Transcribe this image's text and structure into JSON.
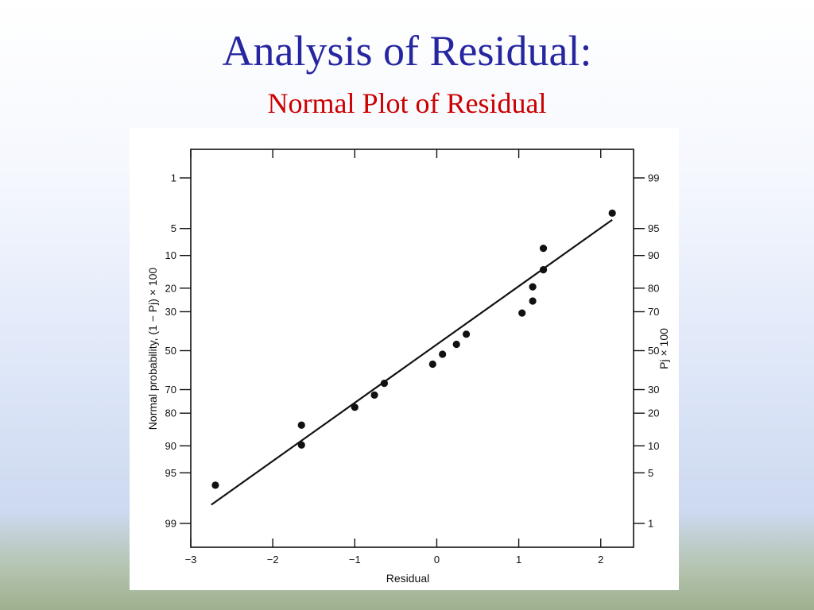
{
  "slide": {
    "title": "Analysis of Residual:",
    "subtitle": "Normal Plot of Residual"
  },
  "colors": {
    "title": "#2626a0",
    "subtitle": "#cc0000",
    "ink": "#111111"
  },
  "chart_data": {
    "type": "scatter",
    "title": "",
    "xlabel": "Residual",
    "ylabel_left": "Normal probability, (1 − Pj) × 100",
    "ylabel_right": "Pj × 100",
    "xlim": [
      -3,
      2.4
    ],
    "x_ticks": [
      -3,
      -2,
      -1,
      0,
      1,
      2
    ],
    "x_tick_labels": [
      "−3",
      "−2",
      "−1",
      "0",
      "1",
      "2"
    ],
    "y_scale": "normal-probability",
    "left_ticks": [
      {
        "label": "1",
        "right": 99
      },
      {
        "label": "5",
        "right": 95
      },
      {
        "label": "10",
        "right": 90
      },
      {
        "label": "20",
        "right": 80
      },
      {
        "label": "30",
        "right": 70
      },
      {
        "label": "50",
        "right": 50
      },
      {
        "label": "70",
        "right": 30
      },
      {
        "label": "80",
        "right": 20
      },
      {
        "label": "90",
        "right": 10
      },
      {
        "label": "95",
        "right": 5
      },
      {
        "label": "99",
        "right": 1
      }
    ],
    "right_tick_labels": [
      "99",
      "95",
      "90",
      "80",
      "70",
      "50",
      "30",
      "20",
      "10",
      "5",
      "1"
    ],
    "points": [
      {
        "x": -2.7,
        "p": 96.5
      },
      {
        "x": -1.65,
        "p": 89.8
      },
      {
        "x": -1.65,
        "p": 84.2
      },
      {
        "x": -1.0,
        "p": 77.7
      },
      {
        "x": -0.76,
        "p": 72.5
      },
      {
        "x": -0.64,
        "p": 67.0
      },
      {
        "x": -0.05,
        "p": 57.2
      },
      {
        "x": 0.07,
        "p": 51.9
      },
      {
        "x": 0.24,
        "p": 46.6
      },
      {
        "x": 0.36,
        "p": 41.2
      },
      {
        "x": 1.04,
        "p": 30.6
      },
      {
        "x": 1.17,
        "p": 25.2
      },
      {
        "x": 1.17,
        "p": 19.5
      },
      {
        "x": 1.3,
        "p": 13.8
      },
      {
        "x": 1.3,
        "p": 8.4
      },
      {
        "x": 2.14,
        "p": 3.2
      }
    ],
    "fit_line": [
      {
        "x": -2.75,
        "p": 98.1
      },
      {
        "x": 2.14,
        "p": 3.9
      }
    ]
  }
}
